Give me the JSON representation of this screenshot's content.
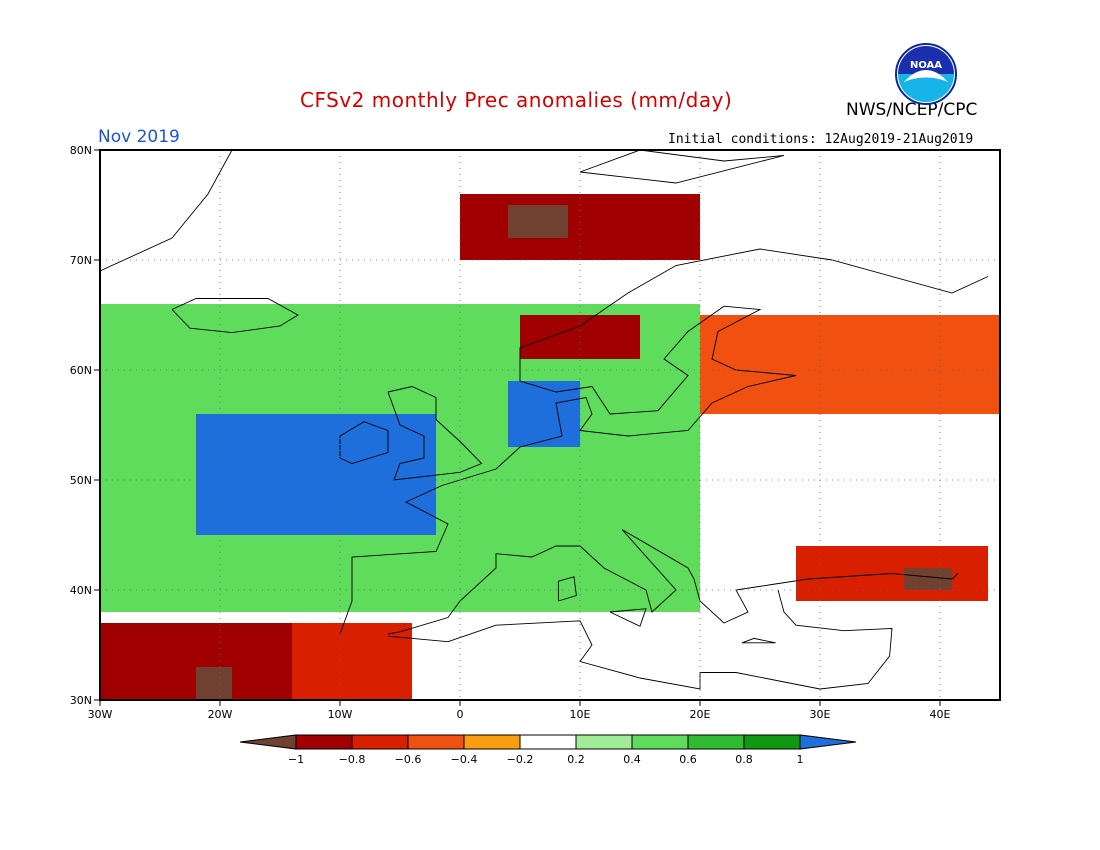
{
  "header": {
    "title": "CFSv2 monthly Prec anomalies (mm/day)",
    "month": "Nov 2019",
    "initial_conditions": "Initial conditions: 12Aug2019-21Aug2019",
    "agency": "NWS/NCEP/CPC",
    "logo_text": "NOAA"
  },
  "map": {
    "lon_range": [
      -30,
      45
    ],
    "lat_range": [
      30,
      80
    ],
    "lat_labels": [
      "80N",
      "70N",
      "60N",
      "50N",
      "40N",
      "30N"
    ],
    "lon_labels": [
      "30W",
      "20W",
      "10W",
      "0",
      "10E",
      "20E",
      "30E",
      "40E"
    ]
  },
  "legend": {
    "labels": [
      "-1",
      "-0.8",
      "-0.6",
      "-0.4",
      "-0.2",
      "0.2",
      "0.4",
      "0.6",
      "0.8",
      "1"
    ],
    "colors": [
      "#704030",
      "#a00000",
      "#d82000",
      "#f05010",
      "#f89e10",
      "#ffffff",
      "#a0ec98",
      "#60dc5c",
      "#30bc30",
      "#109810",
      "#1e6edc"
    ]
  },
  "anomaly_regions": [
    {
      "kind": "dry-strong",
      "lon": [
        -30,
        -14
      ],
      "lat": [
        30,
        37
      ],
      "class": "-0.8"
    },
    {
      "kind": "dry-extreme",
      "lon": [
        -22,
        -19
      ],
      "lat": [
        30,
        33
      ],
      "class": "-1"
    },
    {
      "kind": "dry",
      "lon": [
        -14,
        -4
      ],
      "lat": [
        30,
        37
      ],
      "class": "-0.6"
    },
    {
      "kind": "wet-strong",
      "lon": [
        -22,
        -2
      ],
      "lat": [
        45,
        56
      ],
      "class": "1"
    },
    {
      "kind": "wet-strong",
      "lon": [
        4,
        10
      ],
      "lat": [
        53,
        59
      ],
      "class": "1"
    },
    {
      "kind": "wet",
      "lon": [
        -30,
        20
      ],
      "lat": [
        38,
        66
      ],
      "class": "0.6"
    },
    {
      "kind": "dry",
      "lon": [
        0,
        20
      ],
      "lat": [
        70,
        76
      ],
      "class": "-0.8"
    },
    {
      "kind": "dry-extreme",
      "lon": [
        4,
        9
      ],
      "lat": [
        72,
        75
      ],
      "class": "-1"
    },
    {
      "kind": "dry",
      "lon": [
        5,
        15
      ],
      "lat": [
        61,
        65
      ],
      "class": "-0.8"
    },
    {
      "kind": "dry",
      "lon": [
        20,
        45
      ],
      "lat": [
        56,
        65
      ],
      "class": "-0.4"
    },
    {
      "kind": "dry",
      "lon": [
        28,
        44
      ],
      "lat": [
        39,
        44
      ],
      "class": "-0.6"
    },
    {
      "kind": "dry-extreme",
      "lon": [
        37,
        41
      ],
      "lat": [
        40,
        42
      ],
      "class": "-1"
    }
  ]
}
